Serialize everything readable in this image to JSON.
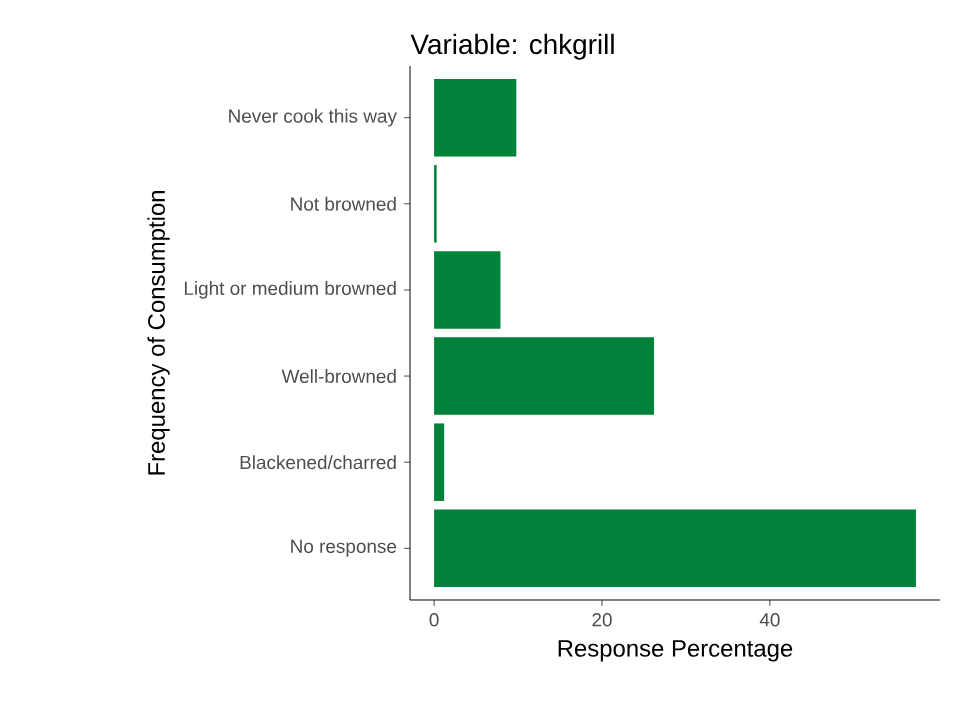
{
  "chart_data": {
    "type": "bar",
    "orientation": "horizontal",
    "title": "Variable: chkgrill",
    "xlabel": "Response Percentage",
    "ylabel": "Frequency of Consumption",
    "categories": [
      "Never cook this way",
      "Not browned",
      "Light or medium browned",
      "Well-browned",
      "Blackened/charred",
      "No response"
    ],
    "values": [
      9.8,
      0.3,
      7.9,
      26.2,
      1.2,
      57.4
    ],
    "color": "#00823b",
    "xlim": [
      -2.87,
      60.27
    ],
    "xticks": [
      0,
      20,
      40
    ],
    "grid": false
  }
}
